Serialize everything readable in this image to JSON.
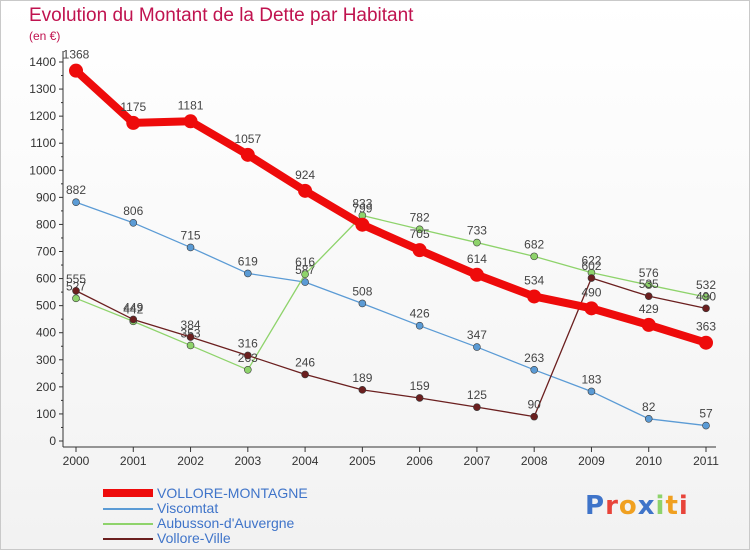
{
  "header": {
    "title": "Evolution du Montant de la Dette par Habitant",
    "unit": "(en €)"
  },
  "logo": {
    "text": "Proxiti"
  },
  "colors": {
    "title": "#c0134f",
    "legend_text": "#3f74c9",
    "axis": "#333333",
    "grid": "#e2e2e2"
  },
  "chart_data": {
    "type": "line",
    "title": "Evolution du Montant de la Dette par Habitant",
    "ylabel": "(en €)",
    "x": [
      "2000",
      "2001",
      "2002",
      "2003",
      "2004",
      "2005",
      "2006",
      "2007",
      "2008",
      "2009",
      "2010",
      "2011"
    ],
    "ylim": [
      0,
      1400
    ],
    "yticks": [
      0,
      100,
      200,
      300,
      400,
      500,
      600,
      700,
      800,
      900,
      1000,
      1100,
      1200,
      1300,
      1400
    ],
    "grid": false,
    "legend_position": "bottom-left",
    "series": [
      {
        "name": "Viscomtat",
        "color": "#5b9bd5",
        "values": [
          882,
          806,
          715,
          619,
          587,
          508,
          426,
          347,
          263,
          183,
          82,
          57
        ]
      },
      {
        "name": "Aubusson-d'Auvergne",
        "color": "#8ed36b",
        "values": [
          527,
          442,
          353,
          263,
          616,
          833,
          782,
          733,
          682,
          622,
          576,
          532
        ]
      },
      {
        "name": "Vollore-Ville",
        "color": "#6b1f1f",
        "values": [
          555,
          449,
          384,
          316,
          246,
          189,
          159,
          125,
          90,
          602,
          535,
          490
        ]
      },
      {
        "name": "VOLLORE-MONTAGNE",
        "color": "#ee0b0b",
        "values": [
          1368,
          1175,
          1181,
          1057,
          924,
          799,
          705,
          614,
          534,
          490,
          429,
          363
        ]
      }
    ]
  },
  "legend": [
    {
      "name": "VOLLORE-MONTAGNE",
      "color": "#ee0b0b",
      "thickness": "thick"
    },
    {
      "name": "Viscomtat",
      "color": "#5b9bd5",
      "thickness": "thin"
    },
    {
      "name": "Aubusson-d'Auvergne",
      "color": "#8ed36b",
      "thickness": "thin"
    },
    {
      "name": "Vollore-Ville",
      "color": "#6b1f1f",
      "thickness": "thin"
    }
  ]
}
